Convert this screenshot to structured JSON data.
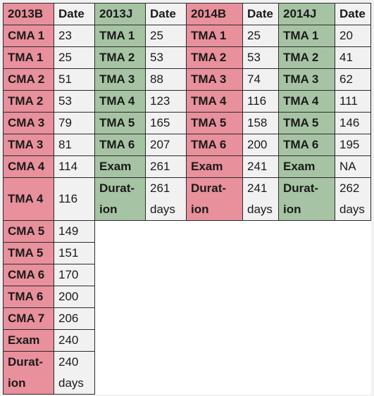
{
  "headers": [
    {
      "label": "2013B",
      "date": "Date"
    },
    {
      "label": "2013J",
      "date": "Date"
    },
    {
      "label": "2014B",
      "date": "Date"
    },
    {
      "label": "2014J",
      "date": "Date"
    }
  ],
  "col2013B": [
    {
      "label": "CMA 1",
      "value": "23"
    },
    {
      "label": "TMA 1",
      "value": "25"
    },
    {
      "label": "CMA 2",
      "value": "51"
    },
    {
      "label": "TMA 2",
      "value": "53"
    },
    {
      "label": "CMA 3",
      "value": "79"
    },
    {
      "label": "TMA 3",
      "value": "81"
    },
    {
      "label": "CMA 4",
      "value": "114"
    },
    {
      "label": "TMA 4",
      "value": "116"
    },
    {
      "label": "CMA 5",
      "value": "149"
    },
    {
      "label": "TMA 5",
      "value": "151"
    },
    {
      "label": "CMA 6",
      "value": "170"
    },
    {
      "label": "TMA 6",
      "value": "200"
    },
    {
      "label": "CMA 7",
      "value": "206"
    },
    {
      "label": "Exam",
      "value": "240"
    },
    {
      "label": "Durat-ion",
      "value": "240 days"
    }
  ],
  "col2013J": [
    {
      "label": "TMA 1",
      "value": "25"
    },
    {
      "label": "TMA 2",
      "value": "53"
    },
    {
      "label": "TMA 3",
      "value": "88"
    },
    {
      "label": "TMA 4",
      "value": "123"
    },
    {
      "label": "TMA 5",
      "value": "165"
    },
    {
      "label": "TMA 6",
      "value": "207"
    },
    {
      "label": "Exam",
      "value": "261"
    },
    {
      "label": "Durat-ion",
      "value": "261 days"
    }
  ],
  "col2014B": [
    {
      "label": "TMA 1",
      "value": "25"
    },
    {
      "label": "TMA 2",
      "value": "53"
    },
    {
      "label": "TMA 3",
      "value": "74"
    },
    {
      "label": "TMA 4",
      "value": "116"
    },
    {
      "label": "TMA 5",
      "value": "158"
    },
    {
      "label": "TMA 6",
      "value": "200"
    },
    {
      "label": "Exam",
      "value": "241"
    },
    {
      "label": "Durat-ion",
      "value": "241 days"
    }
  ],
  "col2014J": [
    {
      "label": "TMA 1",
      "value": "20"
    },
    {
      "label": "TMA 2",
      "value": "41"
    },
    {
      "label": "TMA 3",
      "value": "62"
    },
    {
      "label": "TMA 4",
      "value": "111"
    },
    {
      "label": "TMA 5",
      "value": "146"
    },
    {
      "label": "TMA 6",
      "value": "195"
    },
    {
      "label": "Exam",
      "value": "NA"
    },
    {
      "label": "Durat-ion",
      "value": "262 days"
    }
  ],
  "colors": {
    "pink": "#e8909c",
    "green": "#a6c4a4",
    "cell": "#f1f1f1"
  }
}
